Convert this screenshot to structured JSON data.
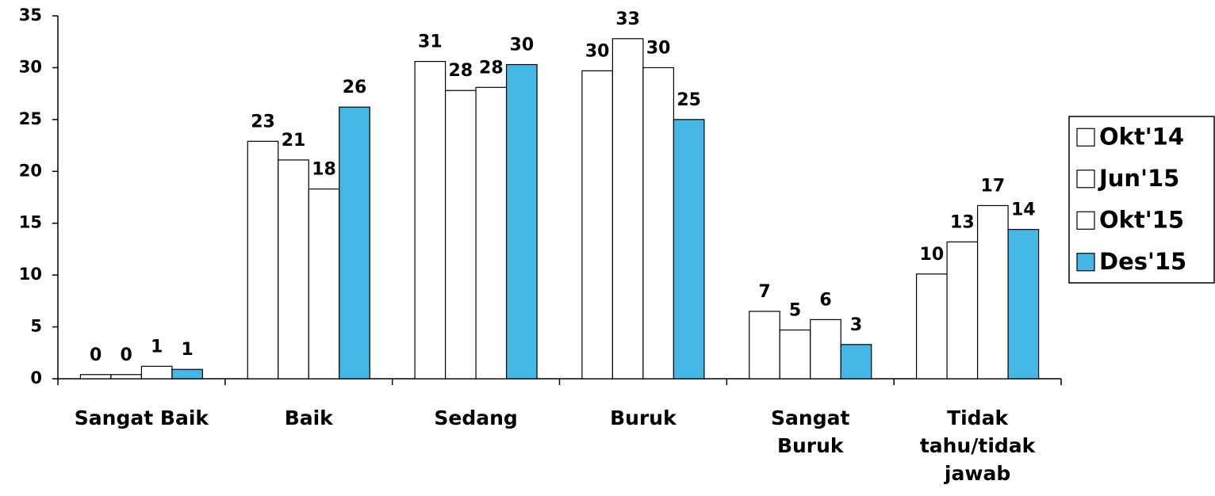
{
  "chart_data": {
    "type": "bar",
    "categories": [
      "Sangat Baik",
      "Baik",
      "Sedang",
      "Buruk",
      "Sangat Buruk",
      "Tidak tahu/tidak jawab"
    ],
    "series": [
      {
        "name": "Okt'14",
        "color": "#ffffff",
        "values": [
          0.4,
          22.9,
          30.6,
          29.7,
          6.5,
          10.1
        ],
        "value_labels": [
          "0",
          "23",
          "31",
          "30",
          "7",
          "10"
        ]
      },
      {
        "name": "Jun'15",
        "color": "#ffffff",
        "values": [
          0.4,
          21.1,
          27.8,
          32.8,
          4.7,
          13.2
        ],
        "value_labels": [
          "0",
          "21",
          "28",
          "33",
          "5",
          "13"
        ]
      },
      {
        "name": "Okt'15",
        "color": "#ffffff",
        "values": [
          1.2,
          18.3,
          28.1,
          30.0,
          5.7,
          16.7
        ],
        "value_labels": [
          "1",
          "18",
          "28",
          "30",
          "6",
          "17"
        ]
      },
      {
        "name": "Des'15",
        "color": "#45b7e5",
        "values": [
          0.9,
          26.2,
          30.3,
          25.0,
          3.3,
          14.4
        ],
        "value_labels": [
          "1",
          "26",
          "30",
          "25",
          "3",
          "14"
        ]
      }
    ],
    "ylim": [
      0,
      35
    ],
    "yticks": [
      0,
      5,
      10,
      15,
      20,
      25,
      30,
      35
    ],
    "grid": false,
    "legend": "right"
  }
}
